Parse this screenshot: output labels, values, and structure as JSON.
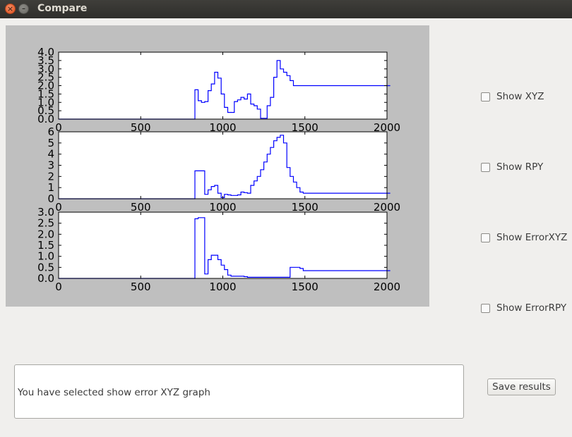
{
  "window": {
    "title": "Compare",
    "close_glyph": "×",
    "minimize_glyph": "–",
    "close_icon": "close-icon",
    "minimize_icon": "minimize-icon"
  },
  "chart_data": [
    {
      "type": "line",
      "xlim": [
        0,
        2000
      ],
      "ylim": [
        0.0,
        4.0
      ],
      "xticks": [
        "0",
        "500",
        "1000",
        "1500",
        "2000"
      ],
      "yticks": [
        "0.0",
        "0.5",
        "1.0",
        "1.5",
        "2.0",
        "2.5",
        "3.0",
        "3.5",
        "4.0"
      ],
      "line_color": "#0000ff",
      "step_width": 20,
      "series": [
        {
          "x": [
            0,
            830,
            830,
            850,
            870,
            890,
            910,
            930,
            950,
            970,
            990,
            1010,
            1030,
            1050,
            1070,
            1090,
            1110,
            1130,
            1150,
            1170,
            1190,
            1210,
            1230,
            1250,
            1270,
            1290,
            1310,
            1330,
            1350,
            1370,
            1390,
            1410,
            1430,
            1450,
            1470,
            1490,
            1510,
            2000
          ],
          "y": [
            0,
            0,
            1.75,
            1.1,
            1.0,
            1.05,
            1.7,
            2.1,
            2.8,
            2.45,
            1.5,
            0.7,
            0.4,
            0.4,
            1.05,
            1.15,
            1.3,
            1.2,
            1.5,
            0.9,
            0.8,
            0.6,
            0.05,
            0.05,
            0.8,
            1.3,
            2.5,
            3.5,
            3.0,
            2.8,
            2.6,
            2.3,
            2.0,
            2.0,
            2.0,
            2.0,
            2.0,
            2.0
          ]
        }
      ]
    },
    {
      "type": "line",
      "xlim": [
        0,
        2000
      ],
      "ylim": [
        0,
        6
      ],
      "xticks": [
        "0",
        "500",
        "1000",
        "1500",
        "2000"
      ],
      "yticks": [
        "0",
        "1",
        "2",
        "3",
        "4",
        "5",
        "6"
      ],
      "line_color": "#0000ff",
      "step_width": 20,
      "series": [
        {
          "x": [
            0,
            830,
            830,
            850,
            870,
            890,
            910,
            930,
            950,
            970,
            990,
            1010,
            1030,
            1050,
            1070,
            1090,
            1110,
            1130,
            1150,
            1170,
            1190,
            1210,
            1230,
            1250,
            1270,
            1290,
            1310,
            1330,
            1350,
            1370,
            1390,
            1410,
            1430,
            1450,
            1470,
            1490,
            1510,
            2000
          ],
          "y": [
            0,
            0,
            2.5,
            2.5,
            2.5,
            0.4,
            0.8,
            1.1,
            1.2,
            0.5,
            0.1,
            0.4,
            0.35,
            0.3,
            0.3,
            0.35,
            0.6,
            0.55,
            0.5,
            1.2,
            1.6,
            2.0,
            2.6,
            3.3,
            4.0,
            4.6,
            5.2,
            5.5,
            5.7,
            5.0,
            2.8,
            2.0,
            1.5,
            1.0,
            0.6,
            0.5,
            0.5,
            0.5
          ]
        }
      ]
    },
    {
      "type": "line",
      "xlim": [
        0,
        2000
      ],
      "ylim": [
        0.0,
        3.0
      ],
      "xticks": [
        "0",
        "500",
        "1000",
        "1500",
        "2000"
      ],
      "yticks": [
        "0.0",
        "0.5",
        "1.0",
        "1.5",
        "2.0",
        "2.5",
        "3.0"
      ],
      "line_color": "#0000ff",
      "step_width": 20,
      "series": [
        {
          "x": [
            0,
            830,
            830,
            850,
            870,
            890,
            910,
            930,
            950,
            970,
            990,
            1010,
            1030,
            1050,
            1070,
            1090,
            1110,
            1130,
            1150,
            1170,
            1190,
            1210,
            1230,
            1250,
            1270,
            1290,
            1310,
            1330,
            1350,
            1370,
            1390,
            1410,
            1430,
            1450,
            1470,
            1490,
            1510,
            2000
          ],
          "y": [
            0,
            0,
            2.7,
            2.75,
            2.75,
            0.2,
            0.85,
            1.05,
            1.05,
            0.85,
            0.6,
            0.4,
            0.15,
            0.1,
            0.1,
            0.1,
            0.1,
            0.08,
            0.05,
            0.05,
            0.05,
            0.05,
            0.05,
            0.05,
            0.05,
            0.05,
            0.05,
            0.05,
            0.05,
            0.05,
            0.05,
            0.5,
            0.5,
            0.5,
            0.45,
            0.35,
            0.35,
            0.35
          ]
        }
      ]
    }
  ],
  "options": [
    {
      "label": "Show XYZ",
      "checked": false
    },
    {
      "label": "Show RPY",
      "checked": false
    },
    {
      "label": "Show ErrorXYZ",
      "checked": false
    },
    {
      "label": "Show ErrorRPY",
      "checked": false
    }
  ],
  "message": {
    "text": "You have selected show error XYZ graph"
  },
  "save_button": {
    "label": "Save results"
  }
}
